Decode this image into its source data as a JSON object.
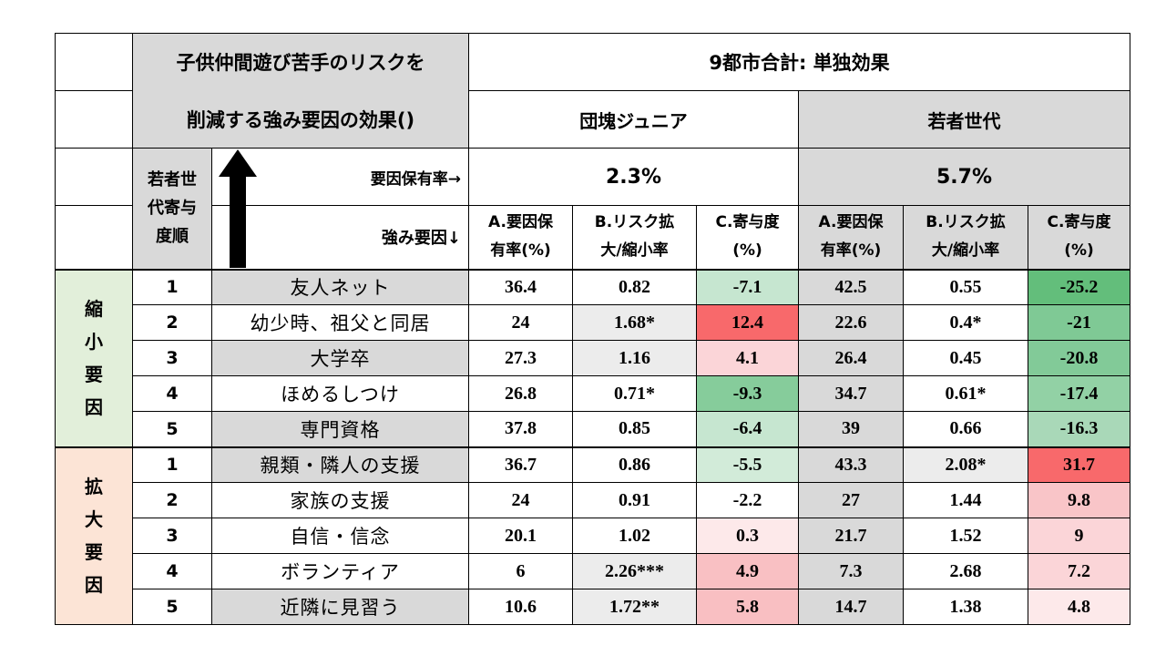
{
  "header": {
    "title_line1": "子供仲間遊び苦手のリスクを",
    "title_line2": "削減する強み要因の効果()",
    "main_title": "9都市合計: 単独効果",
    "group_dankai": "団塊ジュニア",
    "group_young": "若者世代",
    "rank_label_l1": "若者世",
    "rank_label_l2": "代寄与",
    "rank_label_l3": "度順",
    "holding_rate_label": "要因保有率→",
    "strength_factor_label": "強み要因↓",
    "rate_dankai": "2.3%",
    "rate_young": "5.7%",
    "col_a_l1": "A.要因保",
    "col_a_l2": "有率(%)",
    "col_b_l1": "B.リスク拡",
    "col_b_l2": "大/縮小率",
    "col_c_l1": "C.寄与度",
    "col_c_l2": "(%)"
  },
  "groups": {
    "shrink": "縮小要因",
    "expand": "拡大要因"
  },
  "colors": {
    "grey": "#d9d9d9",
    "light_grey": "#ececec",
    "green_light": "#c6e6d0",
    "green_mid": "#a9d8b8",
    "green_dark": "#63be7b",
    "red_light": "#fbd5d8",
    "red_pale": "#fde9ea",
    "red_mid": "#f8a9ad",
    "red_strong": "#f8696b"
  },
  "rows": [
    {
      "rank": "1",
      "factor": "友人ネット",
      "da": "36.4",
      "db": "0.82",
      "dc": "-7.1",
      "ya": "42.5",
      "yb": "0.55",
      "yc": "-25.2"
    },
    {
      "rank": "2",
      "factor": "幼少時、祖父と同居",
      "da": "24",
      "db": "1.68*",
      "dc": "12.4",
      "ya": "22.6",
      "yb": "0.4*",
      "yc": "-21"
    },
    {
      "rank": "3",
      "factor": "大学卒",
      "da": "27.3",
      "db": "1.16",
      "dc": "4.1",
      "ya": "26.4",
      "yb": "0.45",
      "yc": "-20.8"
    },
    {
      "rank": "4",
      "factor": "ほめるしつけ",
      "da": "26.8",
      "db": "0.71*",
      "dc": "-9.3",
      "ya": "34.7",
      "yb": "0.61*",
      "yc": "-17.4"
    },
    {
      "rank": "5",
      "factor": "専門資格",
      "da": "37.8",
      "db": "0.85",
      "dc": "-6.4",
      "ya": "39",
      "yb": "0.66",
      "yc": "-16.3"
    },
    {
      "rank": "1",
      "factor": "親類・隣人の支援",
      "da": "36.7",
      "db": "0.86",
      "dc": "-5.5",
      "ya": "43.3",
      "yb": "2.08*",
      "yc": "31.7"
    },
    {
      "rank": "2",
      "factor": "家族の支援",
      "da": "24",
      "db": "0.91",
      "dc": "-2.2",
      "ya": "27",
      "yb": "1.44",
      "yc": "9.8"
    },
    {
      "rank": "3",
      "factor": "自信・信念",
      "da": "20.1",
      "db": "1.02",
      "dc": "0.3",
      "ya": "21.7",
      "yb": "1.52",
      "yc": "9"
    },
    {
      "rank": "4",
      "factor": "ボランティア",
      "da": "6",
      "db": "2.26***",
      "dc": "4.9",
      "ya": "7.3",
      "yb": "2.68",
      "yc": "7.2"
    },
    {
      "rank": "5",
      "factor": "近隣に見習う",
      "da": "10.6",
      "db": "1.72**",
      "dc": "5.8",
      "ya": "14.7",
      "yb": "1.38",
      "yc": "4.8"
    }
  ]
}
